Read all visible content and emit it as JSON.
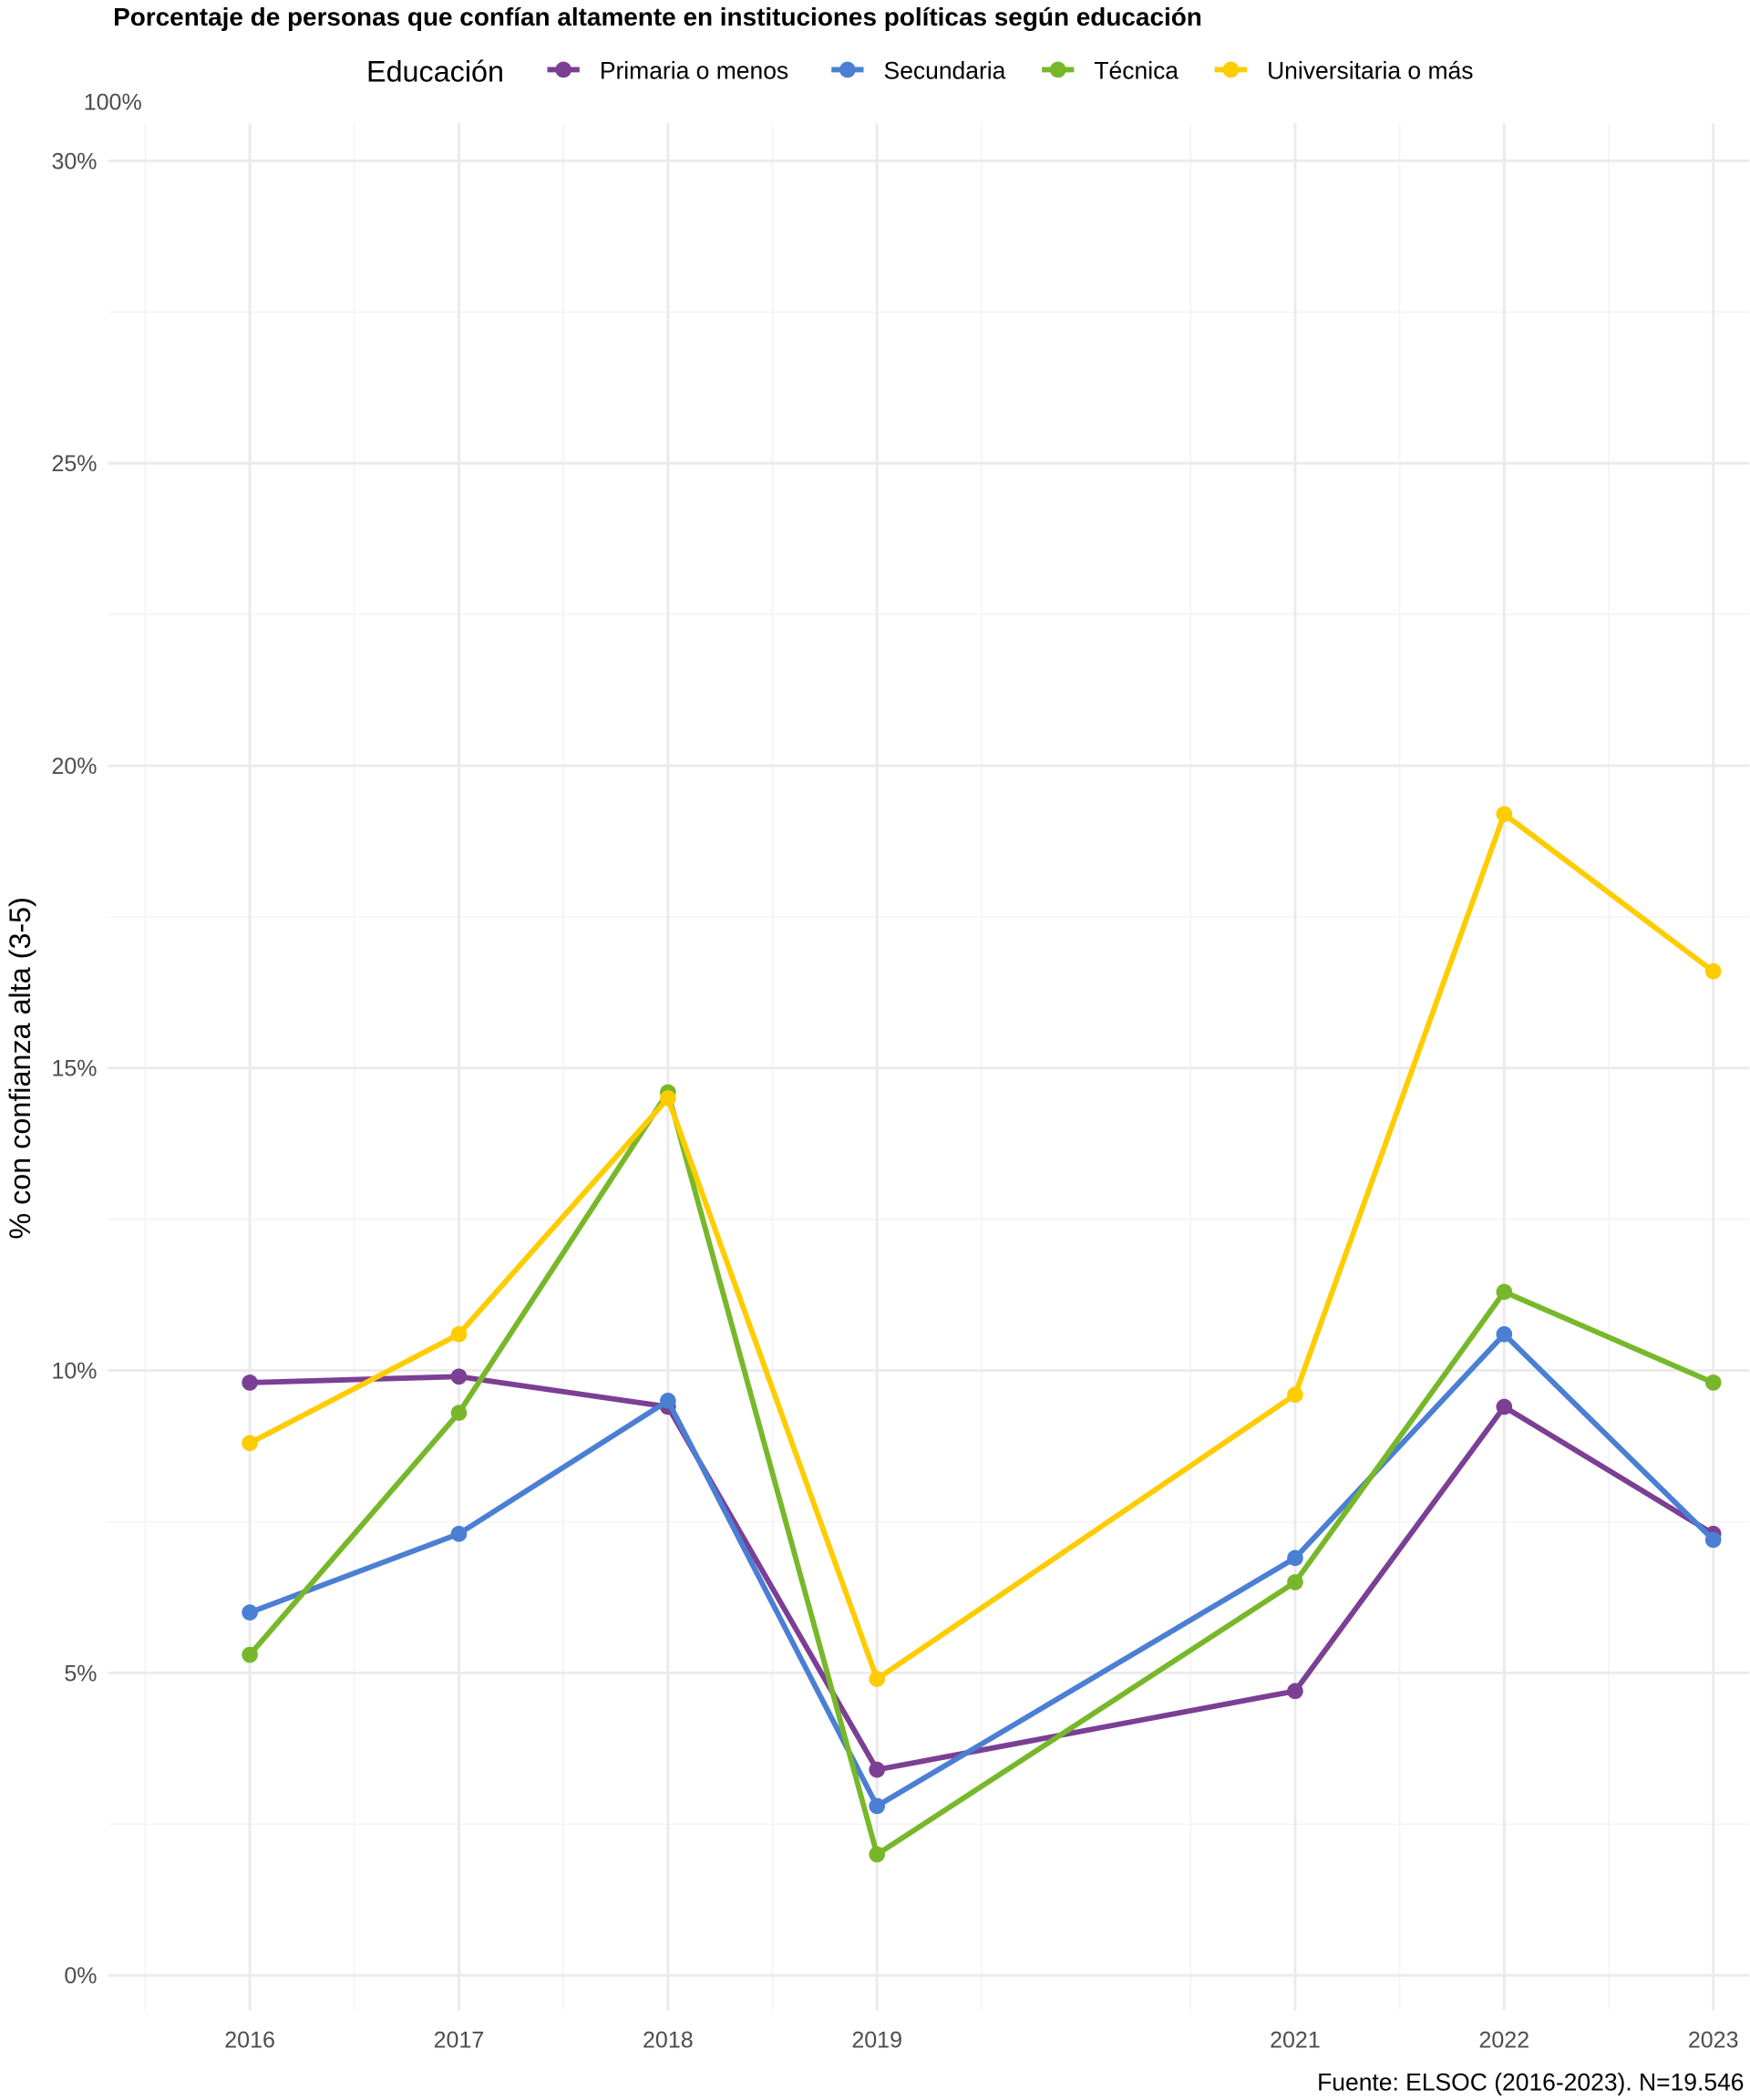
{
  "chart_data": {
    "type": "line",
    "title": "Porcentaje de personas que confían altamente en instituciones políticas según educación",
    "xlabel": "",
    "ylabel": "% con confianza alta (3-5)",
    "caption": "Fuente: ELSOC (2016-2023). N=19.546",
    "top_label": "100%",
    "legend_title": "Educación",
    "legend_position": "top",
    "x": [
      2016,
      2017,
      2018,
      2019,
      2021,
      2022,
      2023
    ],
    "x_tick_labels": [
      "2016",
      "2017",
      "2018",
      "2019",
      "2021",
      "2022",
      "2023"
    ],
    "ylim": [
      0,
      30
    ],
    "y_ticks": [
      0,
      5,
      10,
      15,
      20,
      25,
      30
    ],
    "y_tick_labels": [
      "0%",
      "5%",
      "10%",
      "15%",
      "20%",
      "25%",
      "30%"
    ],
    "grid": true,
    "series": [
      {
        "name": "Primaria o menos",
        "color": "#7B3F94",
        "values": [
          9.8,
          9.9,
          9.4,
          3.4,
          4.7,
          9.4,
          7.3
        ]
      },
      {
        "name": "Secundaria",
        "color": "#4A7FD4",
        "values": [
          6.0,
          7.3,
          9.5,
          2.8,
          6.9,
          10.6,
          7.2
        ]
      },
      {
        "name": "Técnica",
        "color": "#77B82A",
        "values": [
          5.3,
          9.3,
          14.6,
          2.0,
          6.5,
          11.3,
          9.8
        ]
      },
      {
        "name": "Universitaria o más",
        "color": "#FFCC00",
        "values": [
          8.8,
          10.6,
          14.5,
          4.9,
          9.6,
          19.2,
          16.6
        ]
      }
    ]
  }
}
